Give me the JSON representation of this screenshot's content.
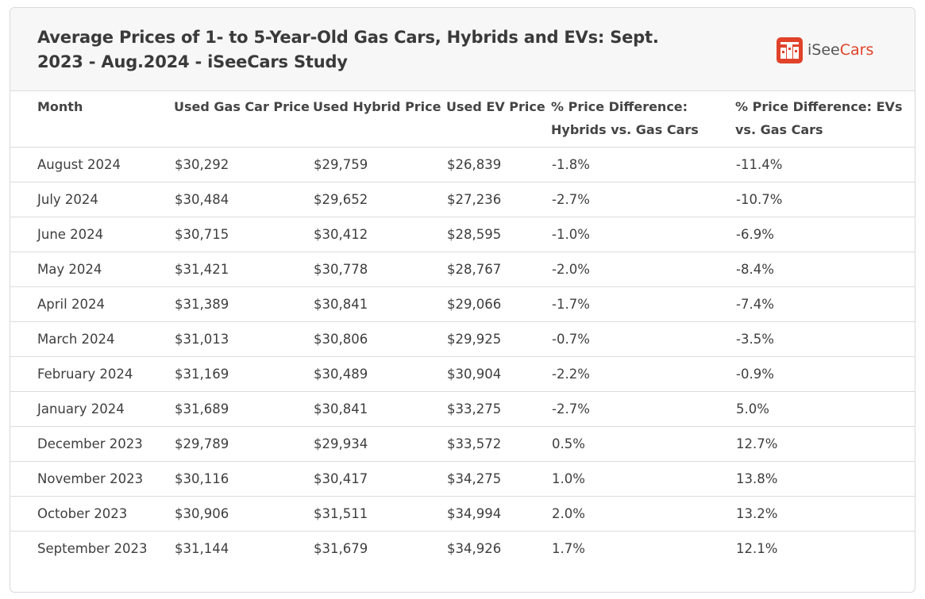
{
  "header": {
    "title": "Average Prices of 1- to 5-Year-Old Gas Cars, Hybrids and EVs: Sept. 2023 - Aug.2024 - iSeeCars Study",
    "logo_text_1": "iSee",
    "logo_text_2": "Cars",
    "logo_icon": "isecars-logo-icon",
    "brand_color": "#e0432a"
  },
  "chart_data": {
    "type": "table",
    "title": "Average Prices of 1- to 5-Year-Old Gas Cars, Hybrids and EVs: Sept. 2023 - Aug.2024 - iSeeCars Study",
    "columns": [
      "Month",
      "Used Gas Car Price",
      "Used Hybrid Price",
      "Used EV Price",
      "% Price Difference: Hybrids vs. Gas Cars",
      "% Price Difference: EVs vs. Gas Cars"
    ],
    "rows": [
      [
        "August 2024",
        "$30,292",
        "$29,759",
        "$26,839",
        "-1.8%",
        "-11.4%"
      ],
      [
        "July 2024",
        "$30,484",
        "$29,652",
        "$27,236",
        "-2.7%",
        "-10.7%"
      ],
      [
        "June 2024",
        "$30,715",
        "$30,412",
        "$28,595",
        "-1.0%",
        "-6.9%"
      ],
      [
        "May 2024",
        "$31,421",
        "$30,778",
        "$28,767",
        "-2.0%",
        "-8.4%"
      ],
      [
        "April 2024",
        "$31,389",
        "$30,841",
        "$29,066",
        "-1.7%",
        "-7.4%"
      ],
      [
        "March 2024",
        "$31,013",
        "$30,806",
        "$29,925",
        "-0.7%",
        "-3.5%"
      ],
      [
        "February 2024",
        "$31,169",
        "$30,489",
        "$30,904",
        "-2.2%",
        "-0.9%"
      ],
      [
        "January 2024",
        "$31,689",
        "$30,841",
        "$33,275",
        "-2.7%",
        "5.0%"
      ],
      [
        "December 2023",
        "$29,789",
        "$29,934",
        "$33,572",
        "0.5%",
        "12.7%"
      ],
      [
        "November 2023",
        "$30,116",
        "$30,417",
        "$34,275",
        "1.0%",
        "13.8%"
      ],
      [
        "October 2023",
        "$30,906",
        "$31,511",
        "$34,994",
        "2.0%",
        "13.2%"
      ],
      [
        "September 2023",
        "$31,144",
        "$31,679",
        "$34,926",
        "1.7%",
        "12.1%"
      ]
    ]
  }
}
